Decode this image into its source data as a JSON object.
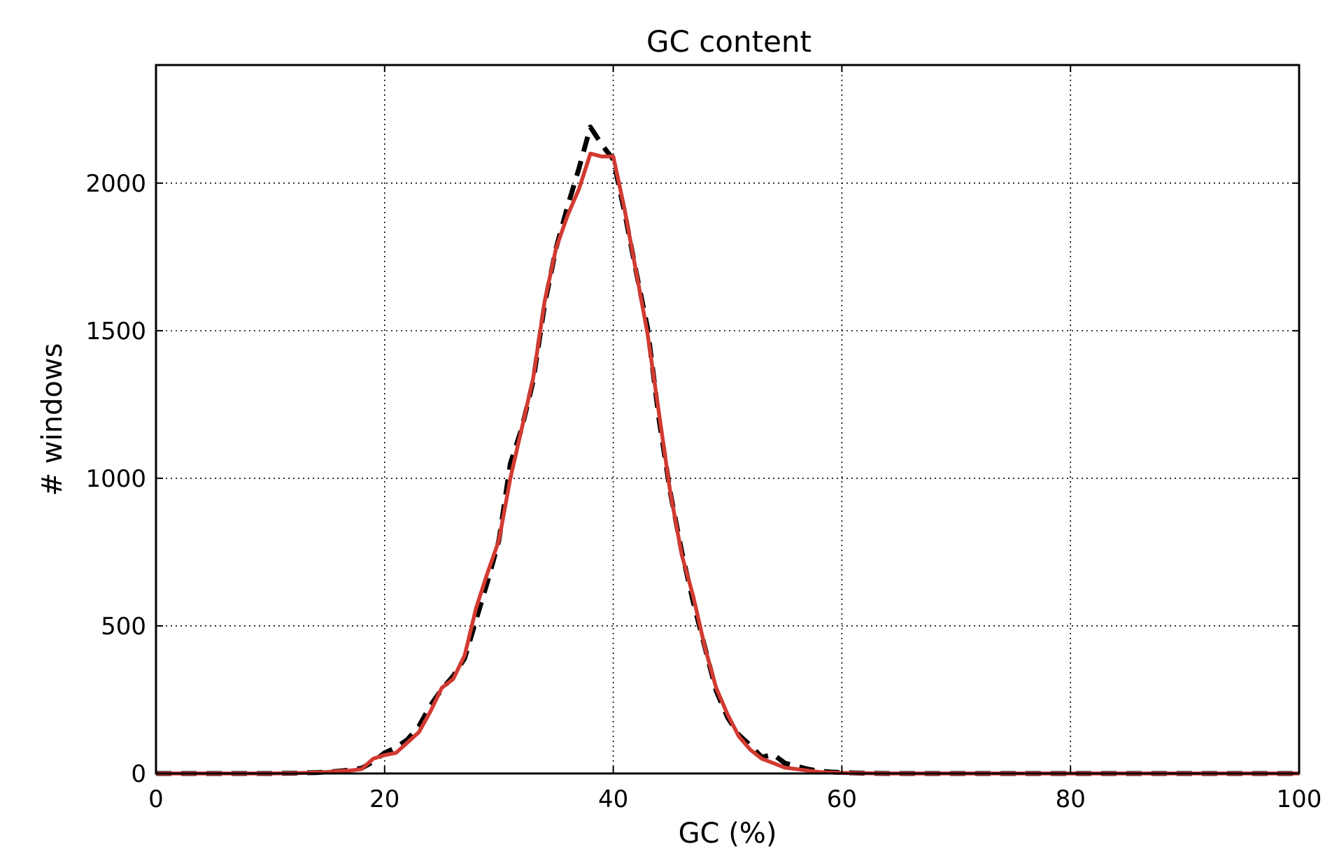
{
  "chart_data": {
    "type": "line",
    "title": "GC content",
    "xlabel": "GC (%)",
    "ylabel": "# windows",
    "xlim": [
      0,
      100
    ],
    "ylim": [
      0,
      2400
    ],
    "xticks": [
      0,
      20,
      40,
      60,
      80,
      100
    ],
    "yticks": [
      0,
      500,
      1000,
      1500,
      2000
    ],
    "grid": true,
    "legend": "none",
    "series": [
      {
        "color": "#000000",
        "style": "dashed",
        "x": [
          0,
          2,
          4,
          6,
          8,
          10,
          12,
          14,
          15,
          16,
          17,
          18,
          19,
          20,
          21,
          22,
          23,
          24,
          25,
          26,
          27,
          28,
          29,
          30,
          31,
          32,
          33,
          34,
          35,
          36,
          37,
          38,
          39,
          40,
          41,
          42,
          43,
          44,
          45,
          46,
          47,
          48,
          49,
          50,
          51,
          52,
          53,
          54,
          55,
          56,
          57,
          58,
          59,
          60,
          62,
          64,
          66,
          70,
          80,
          90,
          100
        ],
        "y": [
          0,
          0,
          0,
          0,
          0,
          0,
          1,
          3,
          5,
          8,
          12,
          18,
          40,
          70,
          88,
          115,
          160,
          230,
          285,
          330,
          390,
          520,
          650,
          790,
          1050,
          1170,
          1330,
          1590,
          1780,
          1920,
          2050,
          2190,
          2130,
          2080,
          1900,
          1700,
          1510,
          1200,
          950,
          750,
          580,
          430,
          280,
          190,
          130,
          95,
          55,
          65,
          35,
          25,
          15,
          8,
          5,
          3,
          1,
          0,
          0,
          0,
          0,
          0,
          0
        ]
      },
      {
        "color": "#d23a31",
        "style": "solid",
        "x": [
          0,
          2,
          4,
          6,
          8,
          10,
          12,
          14,
          15,
          16,
          17,
          18,
          19,
          20,
          21,
          22,
          23,
          24,
          25,
          26,
          27,
          28,
          29,
          30,
          31,
          32,
          33,
          34,
          35,
          36,
          37,
          38,
          39,
          40,
          41,
          42,
          43,
          44,
          45,
          46,
          47,
          48,
          49,
          50,
          51,
          52,
          53,
          54,
          55,
          56,
          57,
          58,
          59,
          60,
          62,
          64,
          66,
          70,
          80,
          90,
          100
        ],
        "y": [
          0,
          0,
          0,
          0,
          0,
          0,
          1,
          3,
          5,
          8,
          10,
          15,
          50,
          62,
          70,
          105,
          140,
          210,
          290,
          320,
          400,
          560,
          680,
          790,
          1000,
          1170,
          1340,
          1600,
          1780,
          1890,
          1980,
          2100,
          2090,
          2090,
          1910,
          1700,
          1490,
          1220,
          950,
          740,
          600,
          430,
          290,
          200,
          125,
          80,
          50,
          35,
          20,
          15,
          10,
          5,
          3,
          2,
          1,
          0,
          0,
          0,
          0,
          0,
          0
        ]
      }
    ]
  }
}
